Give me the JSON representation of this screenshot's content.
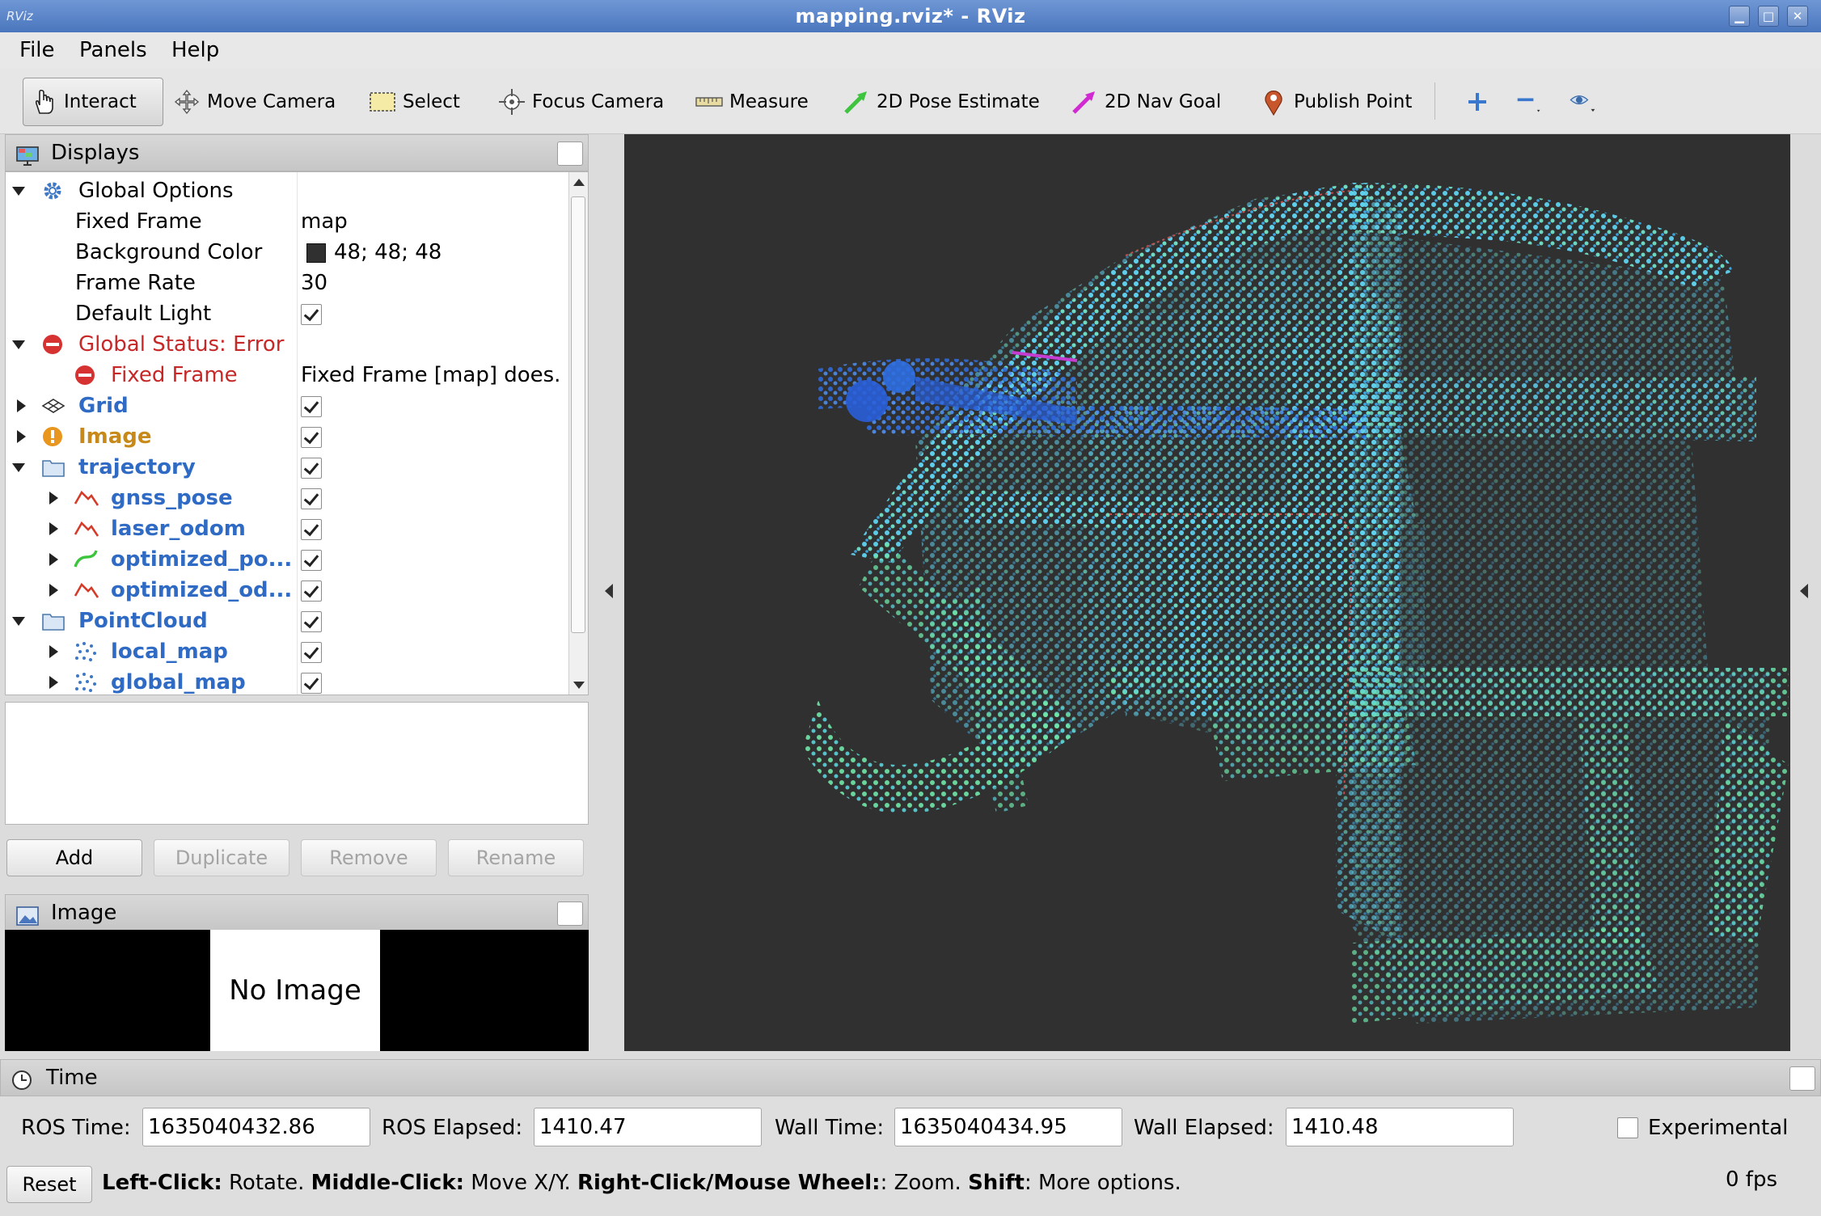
{
  "window": {
    "title": "mapping.rviz* - RViz",
    "app_icon": "RViz"
  },
  "menu": [
    "File",
    "Panels",
    "Help"
  ],
  "toolbar": {
    "tools": [
      {
        "label": "Interact",
        "icon": "hand-icon"
      },
      {
        "label": "Move Camera",
        "icon": "move-camera-icon"
      },
      {
        "label": "Select",
        "icon": "select-icon"
      },
      {
        "label": "Focus Camera",
        "icon": "focus-camera-icon"
      },
      {
        "label": "Measure",
        "icon": "ruler-icon"
      },
      {
        "label": "2D Pose Estimate",
        "icon": "green-arrow-icon"
      },
      {
        "label": "2D Nav Goal",
        "icon": "magenta-arrow-icon"
      },
      {
        "label": "Publish Point",
        "icon": "map-pin-icon"
      }
    ]
  },
  "displays": {
    "title": "Displays",
    "rows": [
      {
        "name": "Global Options",
        "value": ""
      },
      {
        "name": "Fixed Frame",
        "value": "map"
      },
      {
        "name": "Background Color",
        "value": "48; 48; 48",
        "color": "#303030"
      },
      {
        "name": "Frame Rate",
        "value": "30"
      },
      {
        "name": "Default Light",
        "value": ""
      },
      {
        "name": "Global Status: Error",
        "value": ""
      },
      {
        "name": "Fixed Frame",
        "value": "Fixed Frame [map] does."
      },
      {
        "name": "Grid",
        "value": ""
      },
      {
        "name": "Image",
        "value": ""
      },
      {
        "name": "trajectory",
        "value": ""
      },
      {
        "name": "gnss_pose",
        "value": ""
      },
      {
        "name": "laser_odom",
        "value": ""
      },
      {
        "name": "optimized_po...",
        "value": ""
      },
      {
        "name": "optimized_od...",
        "value": ""
      },
      {
        "name": "PointCloud",
        "value": ""
      },
      {
        "name": "local_map",
        "value": ""
      },
      {
        "name": "global_map",
        "value": ""
      }
    ],
    "buttons": {
      "add": "Add",
      "duplicate": "Duplicate",
      "remove": "Remove",
      "rename": "Rename"
    }
  },
  "image_panel": {
    "title": "Image",
    "placeholder": "No Image"
  },
  "time_panel": {
    "title": "Time",
    "ros_time_label": "ROS Time:",
    "ros_time": "1635040432.86",
    "ros_elapsed_label": "ROS Elapsed:",
    "ros_elapsed": "1410.47",
    "wall_time_label": "Wall Time:",
    "wall_time": "1635040434.95",
    "wall_elapsed_label": "Wall Elapsed:",
    "wall_elapsed": "1410.48",
    "experimental_label": "Experimental"
  },
  "status": {
    "reset": "Reset",
    "left_click": "Left-Click:",
    "left_click_desc": " Rotate. ",
    "middle_click": "Middle-Click:",
    "middle_click_desc": " Move X/Y. ",
    "right_click": "Right-Click/Mouse Wheel:",
    "right_click_desc": ": Zoom. ",
    "shift": "Shift",
    "shift_desc": ": More options.",
    "fps": "0 fps"
  },
  "colors": {
    "title_bar": "#5a85c9",
    "link_blue": "#2f6bc4",
    "error_red": "#c62828",
    "warning_orange": "#c78a1a",
    "render_bg": "#303030"
  }
}
